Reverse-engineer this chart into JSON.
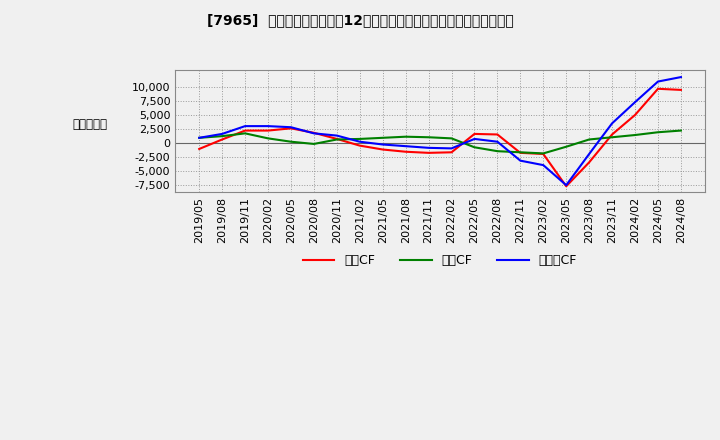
{
  "title": "[7965]  キャッシュフローの12か月移動合計の対前年同期増減額の推移",
  "ylabel": "（百万円）",
  "ylim": [
    -8800,
    13000
  ],
  "yticks": [
    -7500,
    -5000,
    -2500,
    0,
    2500,
    5000,
    7500,
    10000
  ],
  "background_color": "#f0f0f0",
  "plot_bg_color": "#f0f0f0",
  "grid_color": "#aaaaaa",
  "dates": [
    "2019/05",
    "2019/08",
    "2019/11",
    "2020/02",
    "2020/05",
    "2020/08",
    "2020/11",
    "2021/02",
    "2021/05",
    "2021/08",
    "2021/11",
    "2022/02",
    "2022/05",
    "2022/08",
    "2022/11",
    "2023/02",
    "2023/05",
    "2023/08",
    "2023/11",
    "2024/02",
    "2024/05",
    "2024/08"
  ],
  "operating_cf": [
    -1100,
    600,
    2200,
    2200,
    2600,
    1800,
    700,
    -500,
    -1200,
    -1600,
    -1800,
    -1700,
    1600,
    1500,
    -1800,
    -2000,
    -7800,
    -3500,
    1500,
    5000,
    9700,
    9500
  ],
  "investing_cf": [
    900,
    1200,
    1700,
    800,
    200,
    -200,
    600,
    700,
    900,
    1100,
    1000,
    800,
    -800,
    -1500,
    -1700,
    -1900,
    -700,
    600,
    1000,
    1400,
    1900,
    2200
  ],
  "free_cf": [
    900,
    1600,
    3000,
    3000,
    2800,
    1700,
    1300,
    200,
    -300,
    -600,
    -900,
    -1000,
    700,
    200,
    -3200,
    -4000,
    -7600,
    -2000,
    3500,
    7300,
    11000,
    11800
  ],
  "operating_color": "#ff0000",
  "investing_color": "#008000",
  "free_color": "#0000ff",
  "legend_labels": [
    "営業CF",
    "投資CF",
    "フリーCF"
  ]
}
